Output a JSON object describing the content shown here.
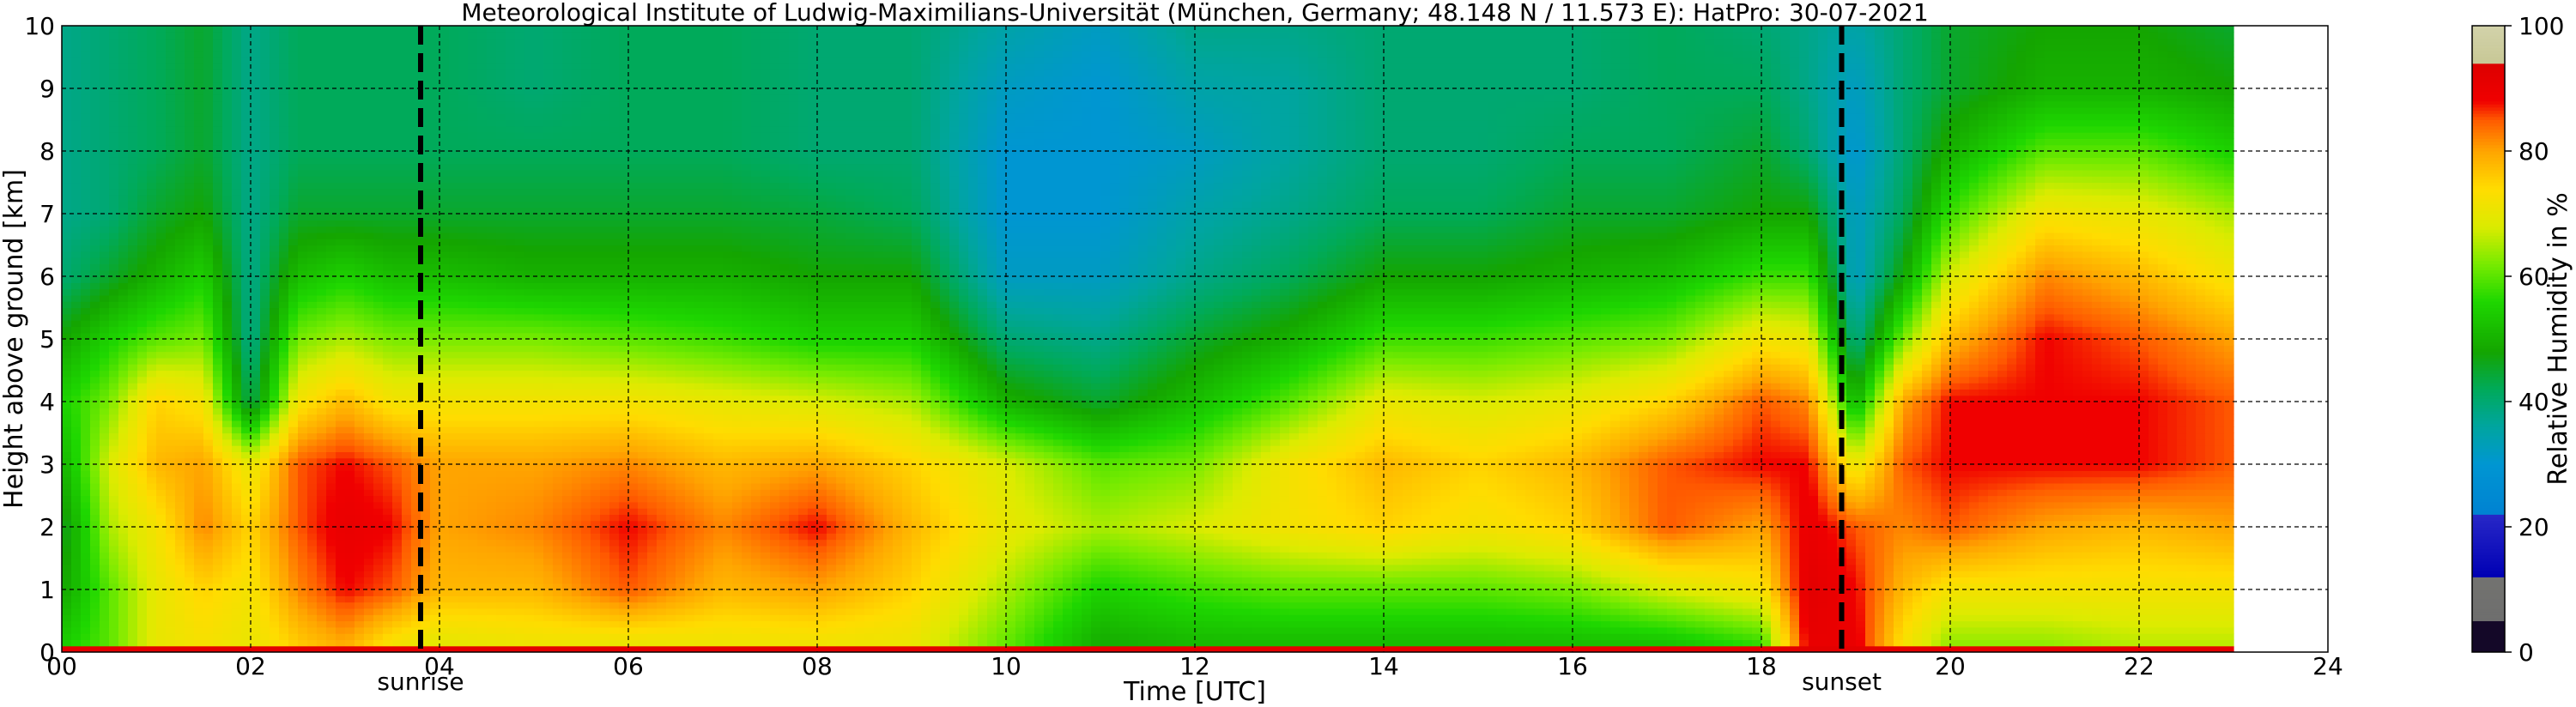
{
  "chart_data": {
    "type": "heatmap",
    "title": "Meteorological Institute of Ludwig-Maximilians-Universität (München, Germany; 48.148 N / 11.573 E):    HatPro: 30-07-2021",
    "xlabel": "Time [UTC]",
    "ylabel": "Height above ground [km]",
    "xlim": [
      0,
      24
    ],
    "ylim": [
      0,
      10
    ],
    "x_ticks": [
      "00",
      "02",
      "04",
      "06",
      "08",
      "10",
      "12",
      "14",
      "16",
      "18",
      "20",
      "22",
      "24"
    ],
    "y_ticks": [
      "0",
      "1",
      "2",
      "3",
      "4",
      "5",
      "6",
      "7",
      "8",
      "9",
      "10"
    ],
    "grid": true,
    "data_extent_hours": [
      0,
      23
    ],
    "annotations": [
      {
        "label": "sunrise",
        "x": 3.8
      },
      {
        "label": "sunset",
        "x": 18.85
      }
    ],
    "colorbar": {
      "label": "Relative Humidity in %",
      "range": [
        0,
        100
      ],
      "ticks": [
        "0",
        "20",
        "40",
        "60",
        "80",
        "100"
      ]
    },
    "humidity_profile": [
      {
        "hour": 0.0,
        "values": [
          55,
          48,
          45,
          50,
          55,
          48,
          40,
          38,
          38,
          38,
          38
        ]
      },
      {
        "hour": 0.5,
        "values": [
          60,
          60,
          65,
          68,
          62,
          55,
          45,
          40,
          40,
          40,
          40
        ]
      },
      {
        "hour": 1.0,
        "values": [
          70,
          70,
          72,
          78,
          75,
          60,
          50,
          45,
          42,
          42,
          42
        ]
      },
      {
        "hour": 1.5,
        "values": [
          72,
          75,
          82,
          80,
          72,
          62,
          55,
          48,
          45,
          45,
          45
        ]
      },
      {
        "hour": 2.0,
        "values": [
          70,
          72,
          75,
          70,
          42,
          38,
          38,
          38,
          38,
          38,
          38
        ]
      },
      {
        "hour": 2.5,
        "values": [
          75,
          82,
          85,
          85,
          72,
          62,
          52,
          45,
          42,
          42,
          42
        ]
      },
      {
        "hour": 3.0,
        "values": [
          78,
          88,
          90,
          88,
          78,
          65,
          55,
          45,
          42,
          42,
          42
        ]
      },
      {
        "hour": 3.5,
        "values": [
          70,
          85,
          88,
          85,
          72,
          62,
          52,
          45,
          42,
          42,
          42
        ]
      },
      {
        "hour": 4.0,
        "values": [
          68,
          78,
          80,
          80,
          72,
          62,
          52,
          45,
          42,
          42,
          42
        ]
      },
      {
        "hour": 5.0,
        "values": [
          70,
          78,
          82,
          80,
          72,
          62,
          50,
          45,
          42,
          40,
          40
        ]
      },
      {
        "hour": 6.0,
        "values": [
          68,
          85,
          88,
          82,
          72,
          60,
          50,
          45,
          42,
          42,
          42
        ]
      },
      {
        "hour": 7.0,
        "values": [
          70,
          78,
          82,
          78,
          70,
          58,
          50,
          45,
          42,
          42,
          42
        ]
      },
      {
        "hour": 8.0,
        "values": [
          70,
          80,
          88,
          80,
          68,
          55,
          48,
          44,
          40,
          40,
          40
        ]
      },
      {
        "hour": 9.0,
        "values": [
          70,
          75,
          78,
          75,
          65,
          55,
          48,
          42,
          40,
          40,
          40
        ]
      },
      {
        "hour": 10.0,
        "values": [
          60,
          65,
          70,
          68,
          50,
          40,
          32,
          30,
          30,
          32,
          35
        ]
      },
      {
        "hour": 11.0,
        "values": [
          48,
          55,
          65,
          60,
          45,
          38,
          32,
          30,
          30,
          30,
          32
        ]
      },
      {
        "hour": 12.0,
        "values": [
          50,
          58,
          68,
          62,
          52,
          45,
          38,
          35,
          32,
          35,
          38
        ]
      },
      {
        "hour": 13.0,
        "values": [
          50,
          60,
          72,
          72,
          60,
          50,
          42,
          38,
          36,
          36,
          38
        ]
      },
      {
        "hour": 14.0,
        "values": [
          50,
          60,
          75,
          78,
          70,
          58,
          48,
          42,
          40,
          40,
          40
        ]
      },
      {
        "hour": 15.0,
        "values": [
          50,
          60,
          72,
          75,
          68,
          58,
          48,
          42,
          40,
          40,
          40
        ]
      },
      {
        "hour": 16.0,
        "values": [
          50,
          62,
          75,
          78,
          70,
          60,
          50,
          45,
          42,
          40,
          40
        ]
      },
      {
        "hour": 17.0,
        "values": [
          50,
          68,
          85,
          85,
          75,
          62,
          52,
          45,
          42,
          42,
          42
        ]
      },
      {
        "hour": 18.0,
        "values": [
          55,
          72,
          80,
          88,
          85,
          72,
          58,
          48,
          45,
          42,
          40
        ]
      },
      {
        "hour": 18.5,
        "values": [
          90,
          92,
          90,
          88,
          82,
          70,
          58,
          48,
          40,
          38,
          38
        ]
      },
      {
        "hour": 19.0,
        "values": [
          90,
          88,
          85,
          70,
          50,
          38,
          32,
          32,
          30,
          32,
          35
        ]
      },
      {
        "hour": 19.5,
        "values": [
          72,
          78,
          82,
          85,
          80,
          62,
          48,
          42,
          40,
          40,
          40
        ]
      },
      {
        "hour": 20.0,
        "values": [
          62,
          72,
          85,
          88,
          88,
          78,
          68,
          58,
          50,
          45,
          45
        ]
      },
      {
        "hour": 21.0,
        "values": [
          62,
          72,
          80,
          88,
          88,
          88,
          82,
          72,
          60,
          50,
          48
        ]
      },
      {
        "hour": 22.0,
        "values": [
          65,
          72,
          78,
          88,
          88,
          85,
          78,
          70,
          60,
          50,
          48
        ]
      },
      {
        "hour": 23.0,
        "values": [
          65,
          72,
          80,
          85,
          85,
          80,
          72,
          65,
          55,
          48,
          45
        ]
      }
    ]
  }
}
